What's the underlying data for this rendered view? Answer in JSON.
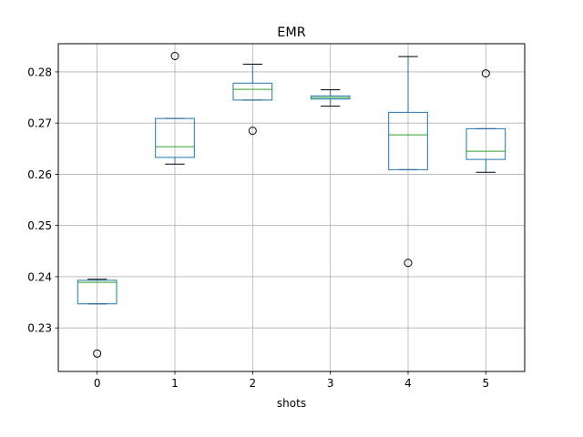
{
  "chart_data": {
    "type": "box",
    "title": "EMR",
    "xlabel": "shots",
    "ylabel": "",
    "categories": [
      "0",
      "1",
      "2",
      "3",
      "4",
      "5"
    ],
    "ylim": [
      0.2215,
      0.2855
    ],
    "yticks": [
      0.23,
      0.24,
      0.25,
      0.26,
      0.27,
      0.28
    ],
    "ytick_labels": [
      "0.23",
      "0.24",
      "0.25",
      "0.26",
      "0.27",
      "0.28"
    ],
    "grid": true,
    "boxes": [
      {
        "category": "0",
        "whisker_low": 0.2347,
        "q1": 0.2347,
        "median": 0.2389,
        "q3": 0.2393,
        "whisker_high": 0.2395,
        "outliers": [
          0.225
        ]
      },
      {
        "category": "1",
        "whisker_low": 0.262,
        "q1": 0.2633,
        "median": 0.2654,
        "q3": 0.2709,
        "whisker_high": 0.2709,
        "outliers": [
          0.2831
        ]
      },
      {
        "category": "2",
        "whisker_low": 0.2745,
        "q1": 0.2745,
        "median": 0.2766,
        "q3": 0.2778,
        "whisker_high": 0.2815,
        "outliers": [
          0.2685
        ]
      },
      {
        "category": "3",
        "whisker_low": 0.2733,
        "q1": 0.2747,
        "median": 0.275,
        "q3": 0.2753,
        "whisker_high": 0.2765,
        "outliers": []
      },
      {
        "category": "4",
        "whisker_low": 0.2609,
        "q1": 0.2609,
        "median": 0.2677,
        "q3": 0.2721,
        "whisker_high": 0.283,
        "outliers": [
          0.2427
        ]
      },
      {
        "category": "5",
        "whisker_low": 0.2604,
        "q1": 0.2629,
        "median": 0.2645,
        "q3": 0.2689,
        "whisker_high": 0.2689,
        "outliers": [
          0.2797
        ]
      }
    ],
    "colors": {
      "box": "#1f77b4",
      "median": "#2ca02c",
      "whisker_cap": "#000000",
      "grid": "#b0b0b0",
      "outlier": "#000000"
    }
  }
}
